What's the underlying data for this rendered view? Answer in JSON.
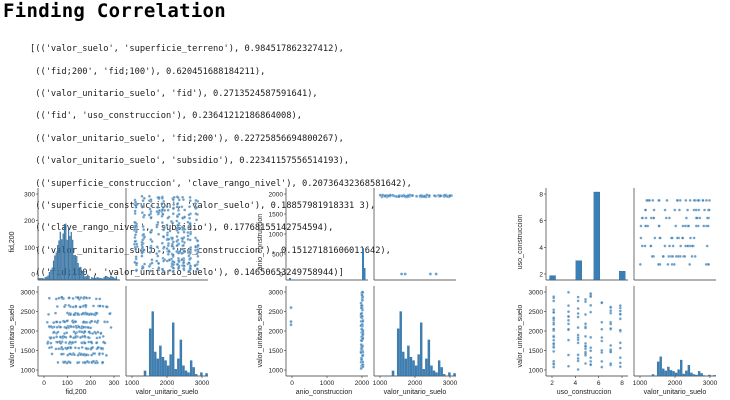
{
  "title": "Finding Correlation",
  "output_lines": [
    "[(('valor_suelo', 'superficie_terreno'), 0.984517862327412),",
    " (('fid;200', 'fid;100'), 0.620451688184211),",
    " (('valor_unitario_suelo', 'fid'), 0.2713524587591641),",
    " (('fid', 'uso_construccion'), 0.23641212186864008),",
    " (('valor_unitario_suelo', 'fid;200'), 0.22725856694800267),",
    " (('valor_unitario_suelo', 'subsidio'), 0.22341157556514193),",
    " (('superficie_construccion', 'clave_rango_nivel'), 0.20736432368581642),",
    " (('superficie_construccion', 'valor_suelo'), 0.18857981918331 3),",
    " (('clave_rango_nivel', 'subsidio'), 0.17768155142754594),",
    " (('valor_unitario_suelo', 'uso_construccion'), 0.15127181606011642),",
    " (('fid;100', 'valor_unitario_suelo'), 0.14650653249758944)]"
  ],
  "pairplots": [
    {
      "var1": "fid,200",
      "var2": "valor_unitario_suelo",
      "ylabel_top": "fid,200",
      "ylabel_bottom": "valor_unitario_suelo",
      "xlabel_left": "fid,200",
      "xlabel_right": "valor_unitario_suelo",
      "yticks_top": [
        "0",
        "100",
        "200",
        "300"
      ],
      "yticks_bottom": [
        "1000",
        "1500",
        "2000",
        "2500",
        "3000"
      ],
      "xticks_left": [
        "0",
        "100",
        "200",
        "300"
      ],
      "xticks_right": [
        "1000",
        "2000",
        "3000"
      ]
    },
    {
      "var1": "anio_construccion",
      "var2": "valor_unitario_suelo",
      "ylabel_top": "anio_construccion",
      "ylabel_bottom": "valor_unitario_suelo",
      "xlabel_left": "anio_construccion",
      "xlabel_right": "valor_unitario_suelo",
      "yticks_top": [
        "0",
        "500",
        "1000",
        "1500",
        "2000"
      ],
      "yticks_bottom": [
        "1000",
        "1500",
        "2000",
        "2500",
        "3000"
      ],
      "xticks_left": [
        "0",
        "1000",
        "2000"
      ],
      "xticks_right": [
        "1000",
        "2000",
        "3000"
      ]
    },
    {
      "var1": "uso_construccion",
      "var2": "valor_unitario_suelo",
      "ylabel_top": "uso_construccion",
      "ylabel_bottom": "valor_unitario_suelo",
      "xlabel_left": "uso_construccion",
      "xlabel_right": "valor_unitario_suelo",
      "yticks_top": [
        "2",
        "4",
        "6",
        "8"
      ],
      "yticks_bottom": [
        "1000",
        "1500",
        "2000",
        "2500",
        "3000"
      ],
      "xticks_left": [
        "2",
        "4",
        "6",
        "8"
      ],
      "xticks_right": [
        "1000",
        "2000",
        "3000"
      ]
    }
  ],
  "colors": {
    "point": "#3a7fb5",
    "bar": "#3a7fb5",
    "axis": "#333333"
  }
}
